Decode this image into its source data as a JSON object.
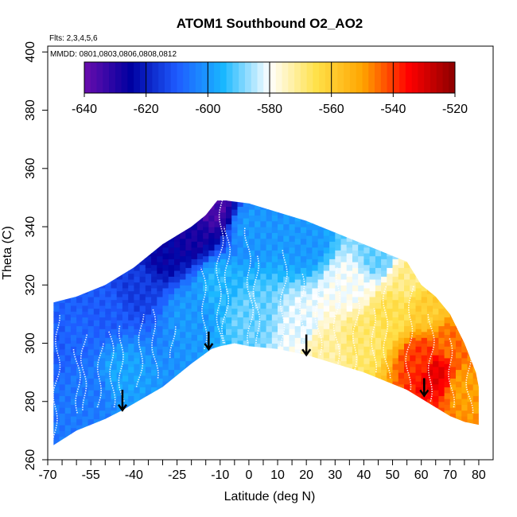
{
  "chart_data": {
    "type": "heatmap",
    "title": "ATOM1 Southbound O2_AO2",
    "flights_note": "Flts: 2,3,4,5,6",
    "dates_note": "MMDD: 0801,0803,0806,0808,0812",
    "xlabel": "Latitude (deg N)",
    "ylabel": "Theta (C)",
    "xlim": [
      -70,
      85
    ],
    "ylim": [
      260,
      402
    ],
    "x_tick_labels": [
      "-70",
      "-55",
      "-40",
      "-25",
      "-10",
      "0",
      "10",
      "20",
      "30",
      "40",
      "50",
      "60",
      "70",
      "80"
    ],
    "x_tick_values": [
      -70,
      -55,
      -40,
      -25,
      -10,
      0,
      10,
      20,
      30,
      40,
      50,
      60,
      70,
      80
    ],
    "x_minor_ticks": [
      -65,
      -60,
      -50,
      -45,
      -35,
      -30,
      -20,
      -15,
      -5,
      5,
      15,
      25,
      35,
      45,
      55,
      65,
      75
    ],
    "y_tick_labels": [
      "260",
      "280",
      "300",
      "320",
      "340",
      "360",
      "380",
      "400"
    ],
    "y_tick_values": [
      260,
      280,
      300,
      320,
      340,
      360,
      380,
      400
    ],
    "colorbar": {
      "range": [
        -640,
        -520
      ],
      "tick_labels": [
        "-640",
        "-620",
        "-600",
        "-580",
        "-560",
        "-540",
        "-520"
      ],
      "tick_values": [
        -640,
        -620,
        -600,
        -580,
        -560,
        -540,
        -520
      ],
      "colors": [
        "#6a0dad",
        "#0000a0",
        "#1e5bff",
        "#19b7ff",
        "#ffffff",
        "#ffe14a",
        "#ffa500",
        "#ff0000",
        "#8b0000"
      ]
    },
    "coverage": {
      "top_boundary": [
        [
          -68,
          314
        ],
        [
          -60,
          316
        ],
        [
          -50,
          320
        ],
        [
          -40,
          326
        ],
        [
          -30,
          334
        ],
        [
          -20,
          340
        ],
        [
          -15,
          344
        ],
        [
          -11,
          349
        ],
        [
          -8,
          349
        ],
        [
          0,
          348
        ],
        [
          10,
          345
        ],
        [
          20,
          342
        ],
        [
          30,
          338
        ],
        [
          40,
          334
        ],
        [
          50,
          330
        ],
        [
          55,
          328
        ],
        [
          60,
          320
        ],
        [
          65,
          316
        ],
        [
          70,
          310
        ],
        [
          75,
          300
        ],
        [
          79,
          290
        ],
        [
          80,
          285
        ]
      ],
      "bottom_boundary": [
        [
          -68,
          265
        ],
        [
          -60,
          270
        ],
        [
          -50,
          274
        ],
        [
          -44,
          277
        ],
        [
          -30,
          285
        ],
        [
          -20,
          293
        ],
        [
          -13,
          298
        ],
        [
          -10,
          299
        ],
        [
          -5,
          300
        ],
        [
          0,
          299
        ],
        [
          10,
          298
        ],
        [
          20,
          296
        ],
        [
          30,
          293
        ],
        [
          40,
          290
        ],
        [
          50,
          286
        ],
        [
          55,
          284
        ],
        [
          60,
          281
        ],
        [
          65,
          278
        ],
        [
          70,
          275
        ],
        [
          75,
          273
        ],
        [
          80,
          272
        ]
      ]
    },
    "field_anchors": [
      {
        "lat": -68,
        "theta": 300,
        "value": -610
      },
      {
        "lat": -60,
        "theta": 300,
        "value": -608
      },
      {
        "lat": -50,
        "theta": 312,
        "value": -610
      },
      {
        "lat": -40,
        "theta": 320,
        "value": -615
      },
      {
        "lat": -30,
        "theta": 332,
        "value": -625
      },
      {
        "lat": -20,
        "theta": 338,
        "value": -628
      },
      {
        "lat": -12,
        "theta": 346,
        "value": -635
      },
      {
        "lat": -20,
        "theta": 310,
        "value": -600
      },
      {
        "lat": -10,
        "theta": 320,
        "value": -595
      },
      {
        "lat": 0,
        "theta": 340,
        "value": -600
      },
      {
        "lat": 0,
        "theta": 310,
        "value": -590
      },
      {
        "lat": 20,
        "theta": 335,
        "value": -600
      },
      {
        "lat": 20,
        "theta": 305,
        "value": -582
      },
      {
        "lat": 25,
        "theta": 300,
        "value": -572
      },
      {
        "lat": 35,
        "theta": 320,
        "value": -580
      },
      {
        "lat": 40,
        "theta": 302,
        "value": -568
      },
      {
        "lat": 45,
        "theta": 330,
        "value": -590
      },
      {
        "lat": 50,
        "theta": 310,
        "value": -565
      },
      {
        "lat": 55,
        "theta": 322,
        "value": -570
      },
      {
        "lat": 60,
        "theta": 295,
        "value": -540
      },
      {
        "lat": 65,
        "theta": 290,
        "value": -532
      },
      {
        "lat": 70,
        "theta": 300,
        "value": -545
      },
      {
        "lat": 75,
        "theta": 285,
        "value": -550
      },
      {
        "lat": 62,
        "theta": 312,
        "value": -560
      },
      {
        "lat": -55,
        "theta": 285,
        "value": -605
      },
      {
        "lat": -45,
        "theta": 290,
        "value": -598
      }
    ],
    "flight_tracks": [
      {
        "lat": -67,
        "theta_low": 266,
        "theta_high": 310
      },
      {
        "lat": -60,
        "theta_low": 276,
        "theta_high": 298
      },
      {
        "lat": -57,
        "theta_low": 277,
        "theta_high": 303
      },
      {
        "lat": -52,
        "theta_low": 278,
        "theta_high": 300
      },
      {
        "lat": -48,
        "theta_low": 278,
        "theta_high": 304
      },
      {
        "lat": -44,
        "theta_low": 280,
        "theta_high": 306
      },
      {
        "lat": -38,
        "theta_low": 285,
        "theta_high": 310
      },
      {
        "lat": -33,
        "theta_low": 288,
        "theta_high": 312
      },
      {
        "lat": -26,
        "theta_low": 295,
        "theta_high": 306
      },
      {
        "lat": -16,
        "theta_low": 298,
        "theta_high": 326
      },
      {
        "lat": -10,
        "theta_low": 300,
        "theta_high": 349
      },
      {
        "lat": -8,
        "theta_low": 300,
        "theta_high": 340
      },
      {
        "lat": 0,
        "theta_low": 300,
        "theta_high": 340
      },
      {
        "lat": 3,
        "theta_low": 300,
        "theta_high": 330
      },
      {
        "lat": 12,
        "theta_low": 298,
        "theta_high": 332
      },
      {
        "lat": 18,
        "theta_low": 297,
        "theta_high": 324
      },
      {
        "lat": 24,
        "theta_low": 296,
        "theta_high": 320
      },
      {
        "lat": 31,
        "theta_low": 293,
        "theta_high": 326
      },
      {
        "lat": 37,
        "theta_low": 291,
        "theta_high": 315
      },
      {
        "lat": 43,
        "theta_low": 290,
        "theta_high": 312
      },
      {
        "lat": 48,
        "theta_low": 288,
        "theta_high": 320
      },
      {
        "lat": 56,
        "theta_low": 284,
        "theta_high": 320
      },
      {
        "lat": 63,
        "theta_low": 280,
        "theta_high": 310
      },
      {
        "lat": 70,
        "theta_low": 278,
        "theta_high": 302
      },
      {
        "lat": 77,
        "theta_low": 276,
        "theta_high": 296
      }
    ],
    "arrows": [
      {
        "lat": -44,
        "theta_top": 284,
        "theta_tip": 277
      },
      {
        "lat": -14,
        "theta_top": 304,
        "theta_tip": 298
      },
      {
        "lat": 20,
        "theta_top": 303,
        "theta_tip": 296
      },
      {
        "lat": 61,
        "theta_top": 288,
        "theta_tip": 282
      }
    ]
  }
}
